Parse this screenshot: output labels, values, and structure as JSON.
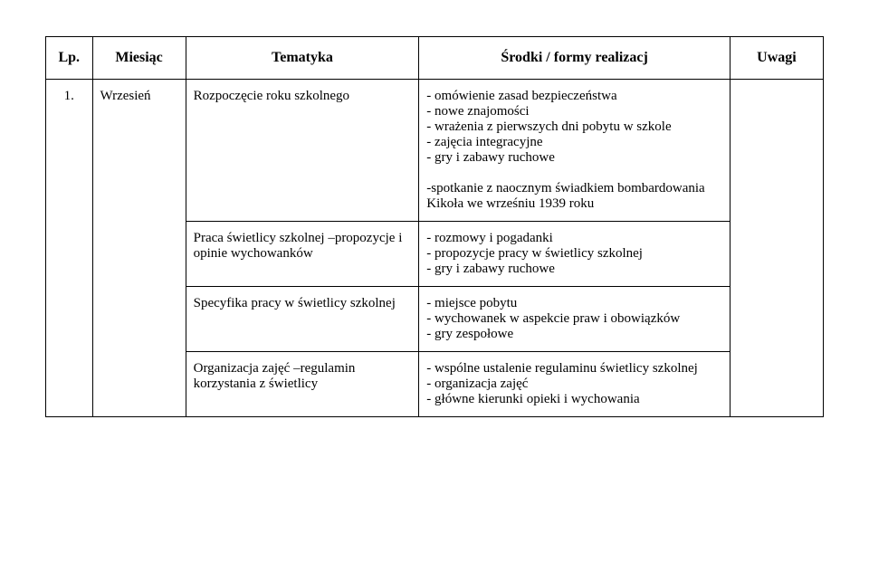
{
  "header": {
    "lp": "Lp.",
    "month": "Miesiąc",
    "topic": "Tematyka",
    "means": "Środki / formy realizacj",
    "notes": "Uwagi"
  },
  "rows": [
    {
      "lp": "1.",
      "month": "Wrzesień",
      "topics": [
        "Rozpoczęcie roku szkolnego",
        "Praca świetlicy szkolnej –propozycje i opinie wychowanków",
        "Specyfika pracy w świetlicy szkolnej",
        "Organizacja zajęć –regulamin korzystania z świetlicy"
      ],
      "means": [
        "- omówienie zasad bezpieczeństwa\n- nowe znajomości\n- wrażenia z pierwszych dni pobytu w szkole\n- zajęcia integracyjne\n- gry i zabawy ruchowe\n\n-spotkanie z naocznym świadkiem bombardowania Kikoła we wrześniu 1939 roku",
        "- rozmowy i pogadanki\n- propozycje pracy w świetlicy szkolnej\n- gry i zabawy ruchowe",
        "- miejsce pobytu\n- wychowanek w aspekcie praw i obowiązków\n- gry zespołowe",
        "- wspólne ustalenie regulaminu świetlicy szkolnej\n- organizacja zajęć\n- główne kierunki opieki i wychowania"
      ]
    }
  ],
  "style": {
    "font_family": "Times New Roman",
    "font_size_pt": 12,
    "header_font_size_pt": 13,
    "text_color": "#000000",
    "background_color": "#ffffff",
    "border_color": "#000000"
  }
}
